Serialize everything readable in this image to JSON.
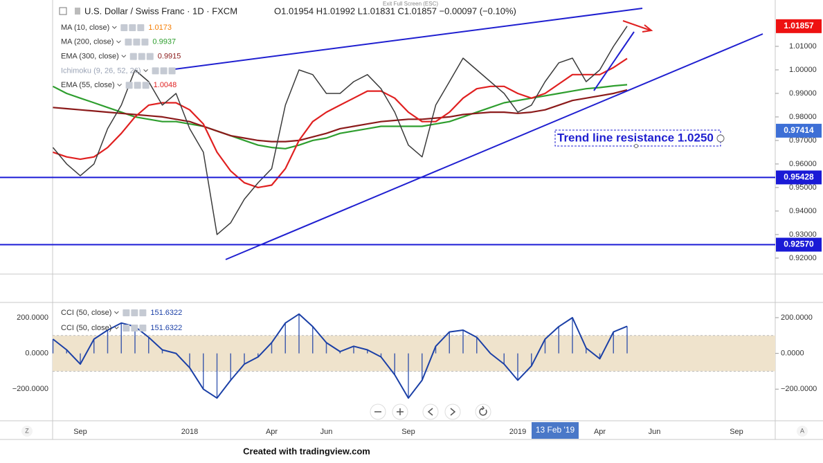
{
  "chart_data": [
    {
      "type": "line",
      "title": "U.S. Dollar / Swiss Franc · 1D · FXCM",
      "ohlc_text": "O1.01954 H1.01992 L1.01831 C1.01857 −0.00097 (−0.10%)",
      "categories": [
        null,
        null,
        "Sep",
        null,
        null,
        null,
        null,
        null,
        null,
        null,
        "2018",
        null,
        null,
        null,
        null,
        null,
        "Apr",
        null,
        null,
        null,
        "Jun",
        null,
        null,
        null,
        null,
        null,
        "Sep",
        null,
        null,
        null,
        null,
        null,
        null,
        null,
        "2019",
        null,
        null,
        null,
        null,
        null,
        "Apr",
        null,
        null,
        null,
        "Jun",
        null,
        null,
        null,
        null,
        null,
        "Sep",
        null,
        null
      ],
      "values": [
        0.967,
        0.96,
        0.955,
        0.96,
        0.975,
        0.985,
        1.0,
        0.995,
        0.985,
        0.99,
        0.975,
        0.965,
        0.93,
        0.935,
        0.945,
        0.952,
        0.958,
        0.985,
        1.0,
        0.998,
        0.99,
        0.99,
        0.995,
        0.998,
        0.992,
        0.982,
        0.968,
        0.963,
        0.985,
        0.995,
        1.005,
        1.0,
        0.995,
        0.99,
        0.982,
        0.985,
        0.995,
        1.003,
        1.005,
        0.995,
        1.0,
        1.01,
        1.01857,
        null,
        null,
        null,
        null,
        null,
        null,
        null,
        null,
        null,
        null
      ],
      "color": "#3a3a3a",
      "indicators": [
        {
          "name": "MA (10, close)",
          "value": 1.0173,
          "color": "#f57c00"
        },
        {
          "name": "MA (200, close)",
          "value": 0.9937,
          "color": "#2e9e2e",
          "values": [
            0.993,
            0.99,
            0.988,
            0.986,
            0.984,
            0.982,
            0.98,
            0.979,
            0.978,
            0.978,
            0.977,
            0.976,
            0.974,
            0.972,
            0.97,
            0.968,
            0.967,
            0.9665,
            0.968,
            0.97,
            0.971,
            0.973,
            0.974,
            0.975,
            0.976,
            0.976,
            0.976,
            0.976,
            0.977,
            0.978,
            0.98,
            0.982,
            0.984,
            0.986,
            0.987,
            0.988,
            0.989,
            0.99,
            0.991,
            0.992,
            0.9925,
            0.9932,
            0.9937,
            null,
            null,
            null,
            null,
            null,
            null,
            null,
            null,
            null,
            null
          ]
        },
        {
          "name": "EMA (300, close)",
          "value": 0.9915,
          "color": "#8b1a1a",
          "values": [
            0.984,
            0.9835,
            0.983,
            0.9825,
            0.982,
            0.9815,
            0.981,
            0.9805,
            0.98,
            0.979,
            0.978,
            0.976,
            0.974,
            0.972,
            0.971,
            0.97,
            0.9695,
            0.9695,
            0.97,
            0.9715,
            0.973,
            0.975,
            0.976,
            0.977,
            0.978,
            0.9785,
            0.979,
            0.979,
            0.9795,
            0.98,
            0.981,
            0.9815,
            0.982,
            0.982,
            0.9815,
            0.982,
            0.983,
            0.985,
            0.987,
            0.988,
            0.989,
            0.99,
            0.9915,
            null,
            null,
            null,
            null,
            null,
            null,
            null,
            null,
            null,
            null
          ]
        },
        {
          "name": "Ichimoku (9, 26, 52, 26)",
          "color": "#9aa3b5"
        },
        {
          "name": "EMA (55, close)",
          "value": 1.0048,
          "color": "#e02020",
          "values": [
            0.965,
            0.963,
            0.962,
            0.963,
            0.967,
            0.973,
            0.98,
            0.985,
            0.986,
            0.986,
            0.983,
            0.977,
            0.965,
            0.957,
            0.952,
            0.95,
            0.951,
            0.958,
            0.97,
            0.978,
            0.982,
            0.985,
            0.988,
            0.991,
            0.991,
            0.988,
            0.982,
            0.978,
            0.978,
            0.982,
            0.988,
            0.992,
            0.993,
            0.993,
            0.99,
            0.988,
            0.99,
            0.994,
            0.998,
            0.998,
            0.998,
            1.001,
            1.0048,
            null,
            null,
            null,
            null,
            null,
            null,
            null,
            null,
            null,
            null
          ]
        }
      ],
      "ylim": [
        0.9135,
        1.0297
      ],
      "yticks": [
        {
          "value": 0.92,
          "label": "0.92000"
        },
        {
          "value": 0.93,
          "label": "0.93000"
        },
        {
          "value": 0.94,
          "label": "0.94000"
        },
        {
          "value": 0.95,
          "label": "0.95000"
        },
        {
          "value": 0.96,
          "label": "0.96000"
        },
        {
          "value": 0.97,
          "label": "0.97000"
        },
        {
          "value": 0.98,
          "label": "0.98000"
        },
        {
          "value": 0.99,
          "label": "0.99000"
        },
        {
          "value": 1.0,
          "label": "1.00000"
        },
        {
          "value": 1.01,
          "label": "1.01000"
        }
      ],
      "grid": false,
      "price_labels": [
        {
          "value": 1.01857,
          "label": "1.01857",
          "color": "#ee1111",
          "line": false
        },
        {
          "value": 0.97414,
          "label": "0.97414",
          "color": "#3d6fd6",
          "line": false
        },
        {
          "value": 0.95428,
          "label": "0.95428",
          "color": "#1a1ad6",
          "line": true
        },
        {
          "value": 0.9257,
          "label": "0.92570",
          "color": "#1a1ad6",
          "line": true
        }
      ],
      "annotation": "Trend line resistance 1.0250"
    },
    {
      "type": "line",
      "series": [
        {
          "name": "CCI (50, close)",
          "legend_value": 151.6322,
          "color": "#1a3fa6",
          "values": [
            80,
            20,
            -60,
            80,
            130,
            170,
            150,
            90,
            20,
            0,
            -80,
            -200,
            -250,
            -150,
            -60,
            -20,
            60,
            170,
            220,
            150,
            60,
            10,
            40,
            20,
            -20,
            -120,
            -250,
            -150,
            40,
            120,
            130,
            90,
            0,
            -60,
            -150,
            -70,
            80,
            150,
            200,
            30,
            -30,
            120,
            151.6322,
            null,
            null,
            null,
            null,
            null,
            null,
            null,
            null,
            null,
            null
          ]
        }
      ],
      "ylim": [
        -377,
        285
      ],
      "yticks": [
        {
          "value": 200,
          "label": "200.0000"
        },
        {
          "value": 0,
          "label": "0.0000"
        },
        {
          "value": -200,
          "label": "−200.0000"
        }
      ],
      "band": [
        -100,
        100
      ],
      "band_color": "#efe3cc"
    }
  ],
  "ui": {
    "exit_fullscreen": "Exit Full Screen (ESC)",
    "crosshair_date": "13 Feb '19",
    "left_button": "Z",
    "right_button": "A",
    "footer": "Created with tradingview.com"
  }
}
